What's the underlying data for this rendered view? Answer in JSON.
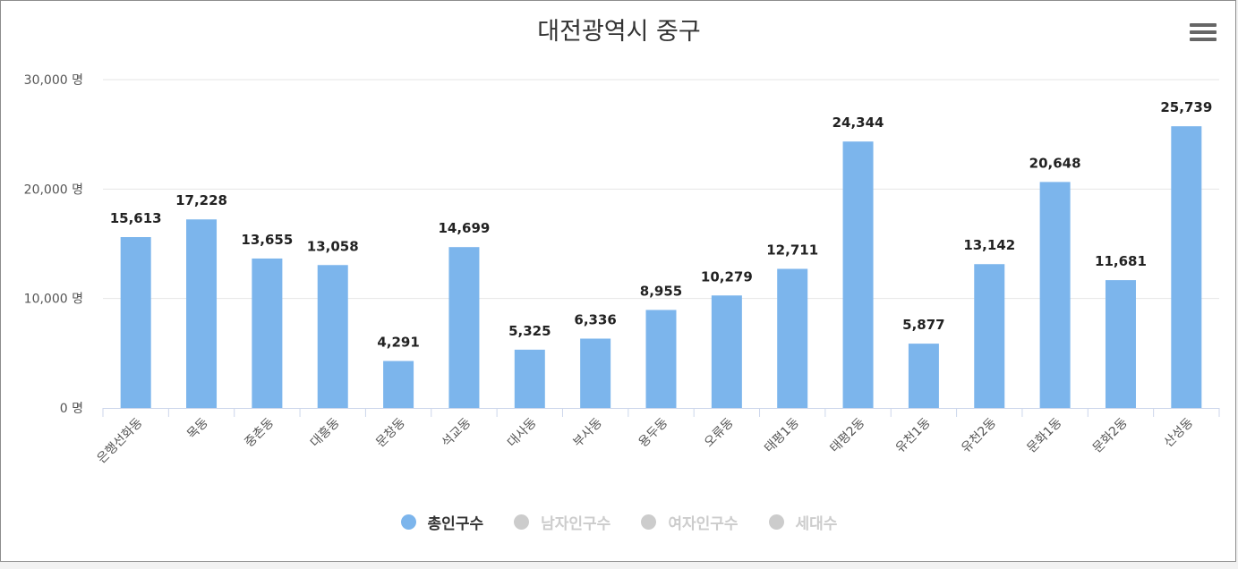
{
  "chart_data": {
    "type": "bar",
    "title": "대전광역시 중구",
    "categories": [
      "은행선화동",
      "목동",
      "중촌동",
      "대흥동",
      "문창동",
      "석교동",
      "대사동",
      "부사동",
      "용두동",
      "오류동",
      "태평1동",
      "태평2동",
      "유천1동",
      "유천2동",
      "문화1동",
      "문화2동",
      "산성동"
    ],
    "series": [
      {
        "name": "총인구수",
        "values": [
          15613,
          17228,
          13655,
          13058,
          4291,
          14699,
          5325,
          6336,
          8955,
          10279,
          12711,
          24344,
          5877,
          13142,
          20648,
          11681,
          25739
        ]
      }
    ],
    "data_labels": [
      "15,613",
      "17,228",
      "13,655",
      "13,058",
      "4,291",
      "14,699",
      "5,325",
      "6,336",
      "8,955",
      "10,279",
      "12,711",
      "24,344",
      "5,877",
      "13,142",
      "20,648",
      "11,681",
      "25,739"
    ],
    "ylim": [
      0,
      30000
    ],
    "yticks": [
      0,
      10000,
      20000,
      30000
    ],
    "ytick_labels": [
      "0 명",
      "10,000 명",
      "20,000 명",
      "30,000 명"
    ],
    "xlabel": "",
    "ylabel": "",
    "grid": true,
    "legend_position": "bottom-center",
    "legend": [
      {
        "label": "총인구수",
        "active": true
      },
      {
        "label": "남자인구수",
        "active": false
      },
      {
        "label": "여자인구수",
        "active": false
      },
      {
        "label": "세대수",
        "active": false
      }
    ]
  },
  "colors": {
    "bar": "#7cb5ec",
    "grid": "#e6e6e6",
    "axis": "#ccd6eb",
    "legend_active_text": "#333333",
    "legend_inactive": "#cccccc"
  },
  "icons": {
    "menu": "hamburger-menu-icon"
  }
}
